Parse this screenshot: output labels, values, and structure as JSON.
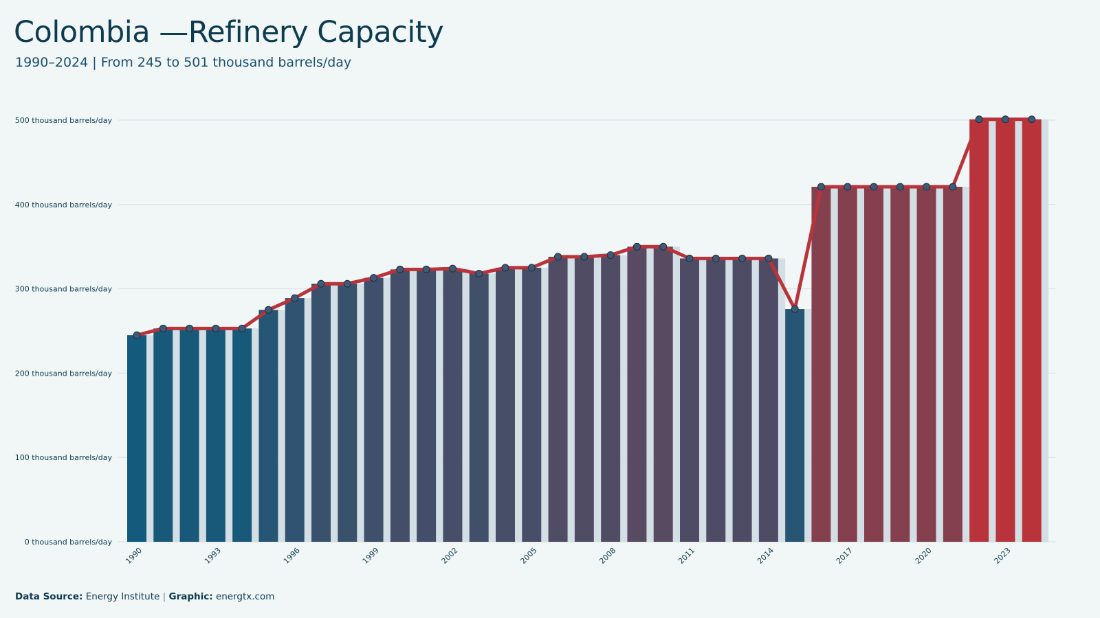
{
  "header": {
    "title": "Colombia —Refinery Capacity",
    "subtitle": "1990–2024 | From 245 to 501 thousand barrels/day"
  },
  "footer": {
    "source_label": "Data Source:",
    "source_value": "Energy Institute",
    "separator": "|",
    "graphic_label": "Graphic:",
    "graphic_value": "energtx.com"
  },
  "chart_data": {
    "type": "bar",
    "x": [
      1990,
      1991,
      1992,
      1993,
      1994,
      1995,
      1996,
      1997,
      1998,
      1999,
      2000,
      2001,
      2002,
      2003,
      2004,
      2005,
      2006,
      2007,
      2008,
      2009,
      2010,
      2011,
      2012,
      2013,
      2014,
      2015,
      2016,
      2017,
      2018,
      2019,
      2020,
      2021,
      2022,
      2023,
      2024
    ],
    "values": [
      245,
      253,
      253,
      253,
      253,
      275,
      289,
      306,
      306,
      313,
      323,
      323,
      324,
      318,
      325,
      325,
      338,
      338,
      340,
      350,
      350,
      336,
      336,
      336,
      336,
      276,
      421,
      421,
      421,
      421,
      421,
      421,
      501,
      501,
      501
    ],
    "xtick_labels": [
      "1990",
      "1993",
      "1996",
      "1999",
      "2002",
      "2005",
      "2008",
      "2011",
      "2014",
      "2017",
      "2020",
      "2023"
    ],
    "ytick_labels": [
      "0 thousand barrels/day",
      "100 thousand barrels/day",
      "200 thousand barrels/day",
      "300 thousand barrels/day",
      "400 thousand barrels/day",
      "500 thousand barrels/day"
    ],
    "ytick_values": [
      0,
      100,
      200,
      300,
      400,
      500
    ],
    "ylim": [
      0,
      530
    ],
    "unit": "thousand barrels/day",
    "grid": true,
    "overlay_line": true,
    "colors": {
      "low": "#135a7c",
      "high": "#b8343a",
      "line": "#b8343a",
      "marker_fill": "#3d5a76",
      "marker_edge": "#1e2f42",
      "grid": "#d8e0e3",
      "bar_shadow": "#d3dfe4"
    }
  }
}
